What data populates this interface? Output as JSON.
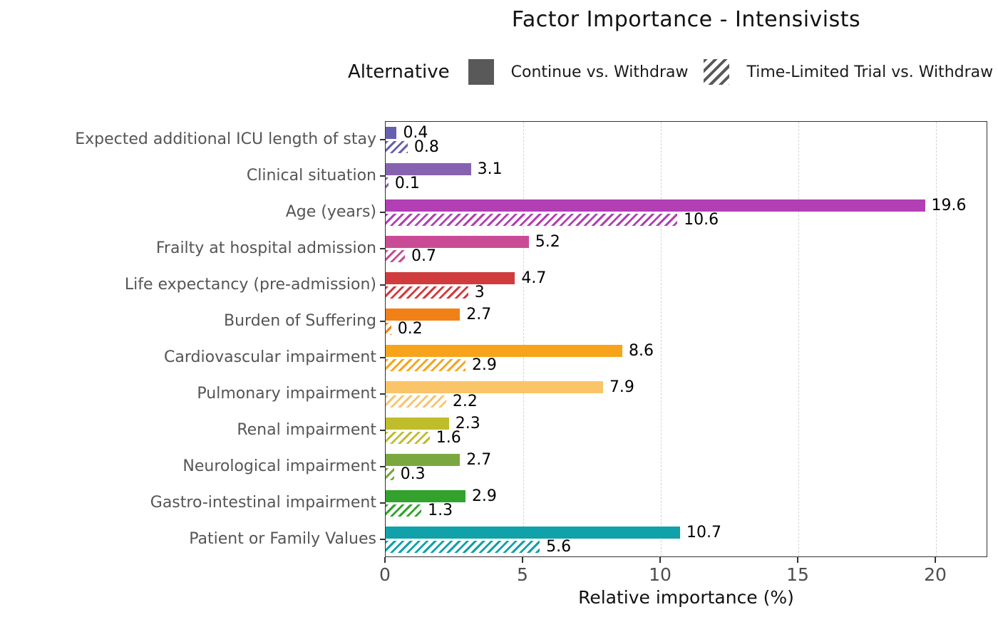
{
  "title": "Factor Importance - Intensivists",
  "legend": {
    "title": "Alternative",
    "items": [
      {
        "label": "Continue vs. Withdraw",
        "pattern": "solid"
      },
      {
        "label": "Time-Limited Trial vs. Withdraw",
        "pattern": "hatched"
      }
    ],
    "swatch_color": "#595959"
  },
  "chart_data": {
    "type": "bar",
    "orientation": "horizontal",
    "title": "Factor Importance - Intensivists",
    "xlabel": "Relative importance (%)",
    "x_ticks": [
      0,
      5,
      10,
      15,
      20
    ],
    "xlim": [
      0,
      21.9
    ],
    "grid": "vertical dashed at major ticks",
    "legend_position": "top",
    "categories": [
      "Expected additional ICU length of stay",
      "Clinical situation",
      "Age (years)",
      "Frailty at hospital admission",
      "Life expectancy (pre-admission)",
      "Burden of Suffering",
      "Cardiovascular impairment",
      "Pulmonary impairment",
      "Renal impairment",
      "Neurological impairment",
      "Gastro-intestinal impairment",
      "Patient or Family Values"
    ],
    "colors": [
      "#6761ad",
      "#8663b1",
      "#b23fb4",
      "#c94b96",
      "#d03c3e",
      "#f18117",
      "#f7a41b",
      "#fac468",
      "#c0bd2c",
      "#7aa83f",
      "#32a22c",
      "#10a1aa"
    ],
    "series": [
      {
        "name": "Continue vs. Withdraw",
        "style": "solid",
        "values": [
          0.4,
          3.1,
          19.6,
          5.2,
          4.7,
          2.7,
          8.6,
          7.9,
          2.3,
          2.7,
          2.9,
          10.7
        ],
        "labels": [
          "0.4",
          "3.1",
          "19.6",
          "5.2",
          "4.7",
          "2.7",
          "8.6",
          "7.9",
          "2.3",
          "2.7",
          "2.9",
          "10.7"
        ]
      },
      {
        "name": "Time-Limited Trial vs. Withdraw",
        "style": "hatched",
        "values": [
          0.8,
          0.1,
          10.6,
          0.7,
          3,
          0.2,
          2.9,
          2.2,
          1.6,
          0.3,
          1.3,
          5.6
        ],
        "labels": [
          "0.8",
          "0.1",
          "10.6",
          "0.7",
          "3",
          "0.2",
          "2.9",
          "2.2",
          "1.6",
          "0.3",
          "1.3",
          "5.6"
        ]
      }
    ]
  },
  "style_colors": {
    "axis_text": "#4d4d4d",
    "category_text": "#555555",
    "value_text": "#000000",
    "gridline": "#d4d4d4",
    "panel_border": "#333333",
    "legend_swatch": "#595959"
  }
}
